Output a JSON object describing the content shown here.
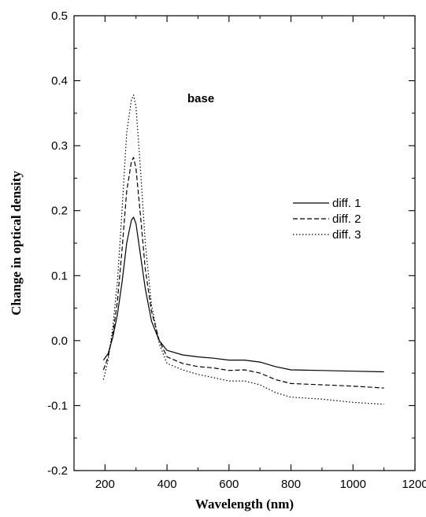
{
  "chart_data": {
    "type": "line",
    "title": "",
    "annotation": "base",
    "xlabel": "Wavelength (nm)",
    "ylabel": "Change in optical density",
    "xlim": [
      100,
      1200
    ],
    "ylim": [
      -0.2,
      0.5
    ],
    "xticks": [
      200,
      400,
      600,
      800,
      1000,
      1200
    ],
    "yticks": [
      -0.2,
      -0.1,
      0.0,
      0.1,
      0.2,
      0.3,
      0.4,
      0.5
    ],
    "ytick_labels": [
      "-0.2",
      "-0.1",
      "0.0",
      "0.1",
      "0.2",
      "0.3",
      "0.4",
      "0.5"
    ],
    "legend_position": "right",
    "series": [
      {
        "name": "diff. 1",
        "style": "solid",
        "x": [
          195,
          210,
          225,
          240,
          255,
          270,
          285,
          292,
          300,
          315,
          330,
          350,
          375,
          400,
          450,
          500,
          550,
          600,
          650,
          700,
          750,
          800,
          900,
          1000,
          1100
        ],
        "y": [
          -0.03,
          -0.02,
          0.005,
          0.04,
          0.09,
          0.15,
          0.185,
          0.19,
          0.18,
          0.13,
          0.08,
          0.03,
          0.0,
          -0.015,
          -0.022,
          -0.025,
          -0.027,
          -0.03,
          -0.03,
          -0.033,
          -0.04,
          -0.045,
          -0.046,
          -0.047,
          -0.048
        ]
      },
      {
        "name": "diff. 2",
        "style": "dashed",
        "x": [
          195,
          210,
          225,
          240,
          255,
          270,
          285,
          292,
          300,
          315,
          330,
          350,
          375,
          400,
          450,
          500,
          550,
          600,
          650,
          700,
          750,
          800,
          900,
          1000,
          1100
        ],
        "y": [
          -0.045,
          -0.025,
          0.01,
          0.06,
          0.14,
          0.23,
          0.275,
          0.282,
          0.265,
          0.19,
          0.11,
          0.045,
          0.0,
          -0.025,
          -0.035,
          -0.04,
          -0.042,
          -0.046,
          -0.045,
          -0.05,
          -0.06,
          -0.066,
          -0.068,
          -0.07,
          -0.073
        ]
      },
      {
        "name": "diff. 3",
        "style": "dotted",
        "x": [
          195,
          210,
          225,
          240,
          255,
          270,
          285,
          292,
          300,
          315,
          330,
          350,
          375,
          400,
          450,
          500,
          550,
          600,
          650,
          700,
          750,
          800,
          900,
          1000,
          1100
        ],
        "y": [
          -0.06,
          -0.03,
          0.02,
          0.09,
          0.2,
          0.32,
          0.37,
          0.378,
          0.36,
          0.26,
          0.15,
          0.055,
          -0.005,
          -0.035,
          -0.045,
          -0.052,
          -0.057,
          -0.062,
          -0.062,
          -0.068,
          -0.08,
          -0.087,
          -0.09,
          -0.095,
          -0.098
        ]
      }
    ]
  }
}
